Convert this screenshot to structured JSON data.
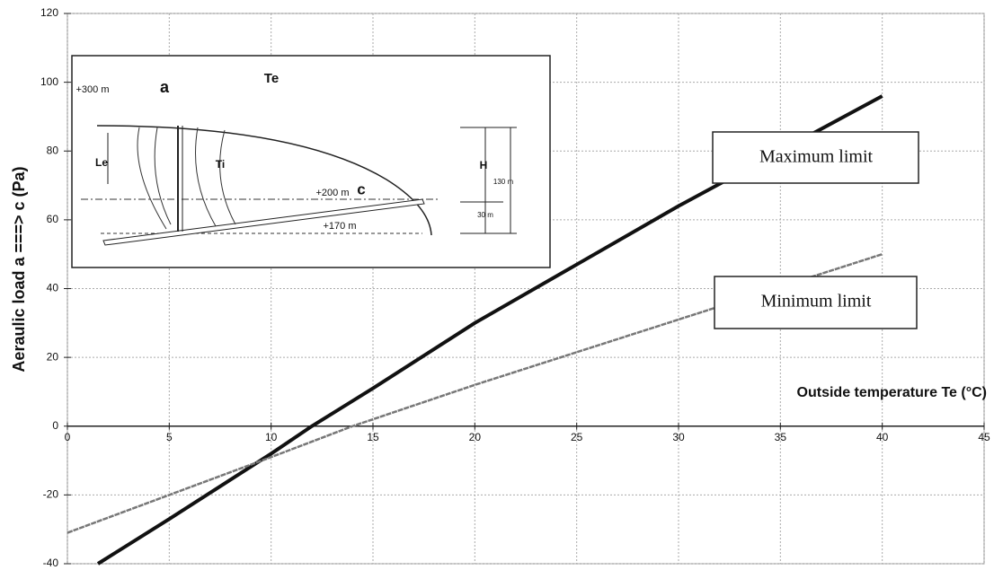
{
  "chart_data": {
    "type": "line",
    "x_label": "Outside temperature Te (°C)",
    "y_label": "Aeraulic load  a ===> c (Pa)",
    "xlim": [
      0,
      45
    ],
    "xticks": [
      0,
      5,
      10,
      15,
      20,
      25,
      30,
      35,
      40,
      45
    ],
    "ylim": [
      -40,
      120
    ],
    "yticks": [
      -40,
      -20,
      0,
      20,
      40,
      60,
      80,
      100,
      120
    ],
    "grid": true,
    "series": [
      {
        "name": "Maximum limit",
        "color": "#111111",
        "x": [
          1.5,
          5,
          10,
          12,
          15,
          20,
          25,
          30,
          35,
          40
        ],
        "values": [
          -40,
          -27,
          -8,
          0,
          11,
          30,
          47,
          64,
          80,
          96
        ]
      },
      {
        "name": "Minimum limit",
        "color": "#777777",
        "x": [
          0,
          10,
          14,
          20,
          30,
          40
        ],
        "values": [
          -31,
          -9,
          0,
          12,
          31,
          50
        ]
      }
    ],
    "inset_labels": [
      "Te",
      "a",
      "+300 m",
      "Le",
      "Ti",
      "+200 m",
      "c",
      "+170 m",
      "H",
      "130 m",
      "30 m"
    ]
  }
}
